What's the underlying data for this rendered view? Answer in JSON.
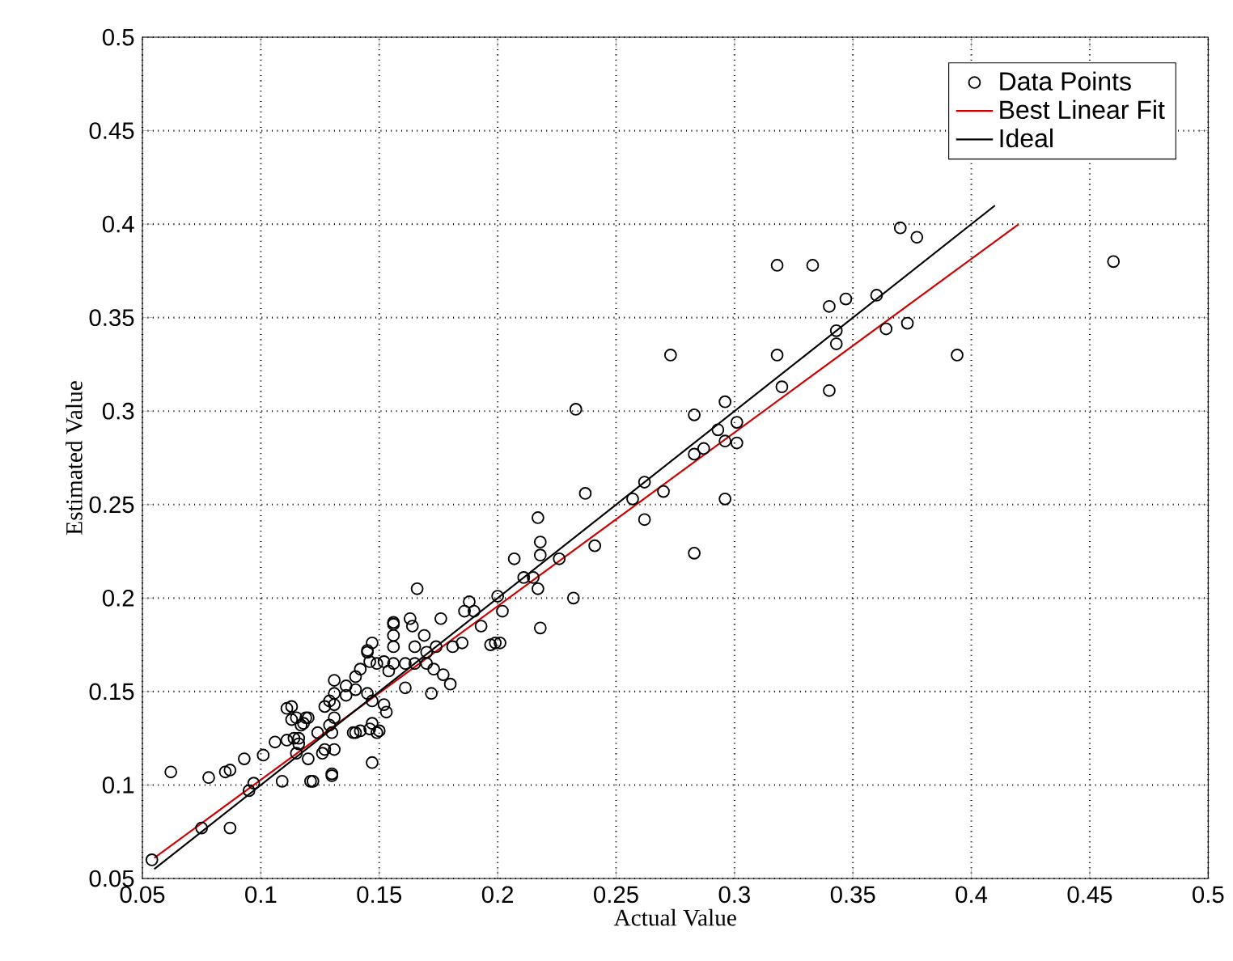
{
  "chart_data": {
    "type": "scatter",
    "xlabel": "Actual Value",
    "ylabel": "Estimated Value",
    "xlim": [
      0.05,
      0.5
    ],
    "ylim": [
      0.05,
      0.5
    ],
    "xticks": [
      0.05,
      0.1,
      0.15,
      0.2,
      0.25,
      0.3,
      0.35,
      0.4,
      0.45,
      0.5
    ],
    "yticks": [
      0.05,
      0.1,
      0.15,
      0.2,
      0.25,
      0.3,
      0.35,
      0.4,
      0.45,
      0.5
    ],
    "grid": true,
    "legend": "top right",
    "series": [
      {
        "name": "Data Points",
        "color": "#000000",
        "marker": "circle",
        "x": [
          0.37,
          0.377,
          0.333,
          0.318,
          0.46,
          0.34,
          0.347,
          0.36,
          0.343,
          0.343,
          0.364,
          0.373,
          0.318,
          0.394,
          0.32,
          0.34,
          0.273,
          0.233,
          0.283,
          0.296,
          0.301,
          0.293,
          0.296,
          0.301,
          0.287,
          0.283,
          0.262,
          0.257,
          0.27,
          0.237,
          0.296,
          0.262,
          0.283,
          0.241,
          0.226,
          0.232,
          0.218,
          0.217,
          0.218,
          0.218,
          0.215,
          0.217,
          0.207,
          0.211,
          0.166,
          0.2,
          0.188,
          0.186,
          0.19,
          0.176,
          0.202,
          0.193,
          0.199,
          0.201,
          0.197,
          0.163,
          0.156,
          0.164,
          0.156,
          0.156,
          0.169,
          0.165,
          0.17,
          0.174,
          0.181,
          0.185,
          0.147,
          0.145,
          0.149,
          0.152,
          0.156,
          0.161,
          0.165,
          0.17,
          0.173,
          0.177,
          0.18,
          0.172,
          0.161,
          0.154,
          0.142,
          0.14,
          0.136,
          0.131,
          0.129,
          0.127,
          0.131,
          0.136,
          0.14,
          0.145,
          0.147,
          0.152,
          0.153,
          0.147,
          0.142,
          0.14,
          0.149,
          0.131,
          0.129,
          0.13,
          0.124,
          0.118,
          0.12,
          0.115,
          0.113,
          0.114,
          0.116,
          0.127,
          0.131,
          0.147,
          0.122,
          0.13,
          0.054,
          0.062,
          0.075,
          0.078,
          0.085,
          0.087,
          0.087,
          0.093,
          0.095,
          0.097,
          0.101,
          0.106,
          0.109,
          0.111,
          0.111,
          0.113,
          0.117,
          0.119,
          0.116,
          0.115,
          0.12,
          0.121,
          0.126,
          0.13,
          0.131,
          0.139,
          0.146,
          0.15,
          0.145,
          0.146,
          0.156
        ],
        "values": [
          0.398,
          0.393,
          0.378,
          0.378,
          0.38,
          0.356,
          0.36,
          0.362,
          0.343,
          0.336,
          0.344,
          0.347,
          0.33,
          0.33,
          0.313,
          0.311,
          0.33,
          0.301,
          0.298,
          0.305,
          0.294,
          0.29,
          0.284,
          0.283,
          0.28,
          0.277,
          0.262,
          0.253,
          0.257,
          0.256,
          0.253,
          0.242,
          0.224,
          0.228,
          0.221,
          0.2,
          0.184,
          0.243,
          0.23,
          0.223,
          0.211,
          0.205,
          0.221,
          0.211,
          0.205,
          0.201,
          0.198,
          0.193,
          0.193,
          0.189,
          0.193,
          0.185,
          0.176,
          0.176,
          0.175,
          0.189,
          0.187,
          0.185,
          0.18,
          0.174,
          0.18,
          0.174,
          0.171,
          0.174,
          0.174,
          0.176,
          0.176,
          0.171,
          0.165,
          0.166,
          0.165,
          0.165,
          0.165,
          0.165,
          0.162,
          0.159,
          0.154,
          0.149,
          0.152,
          0.161,
          0.162,
          0.158,
          0.153,
          0.149,
          0.145,
          0.142,
          0.143,
          0.148,
          0.151,
          0.149,
          0.145,
          0.143,
          0.139,
          0.133,
          0.129,
          0.128,
          0.128,
          0.136,
          0.132,
          0.128,
          0.128,
          0.133,
          0.136,
          0.136,
          0.142,
          0.125,
          0.122,
          0.119,
          0.119,
          0.112,
          0.102,
          0.105,
          0.06,
          0.107,
          0.077,
          0.104,
          0.107,
          0.108,
          0.077,
          0.114,
          0.097,
          0.101,
          0.116,
          0.123,
          0.102,
          0.124,
          0.141,
          0.135,
          0.132,
          0.136,
          0.125,
          0.117,
          0.114,
          0.102,
          0.117,
          0.106,
          0.156,
          0.128,
          0.13,
          0.129,
          0.172,
          0.166,
          0.186
        ]
      },
      {
        "name": "Best Linear Fit",
        "type": "line",
        "color": "#d00000",
        "x": [
          0.055,
          0.42
        ],
        "values": [
          0.061,
          0.4
        ]
      },
      {
        "name": "Ideal",
        "type": "line",
        "color": "#000000",
        "x": [
          0.055,
          0.41
        ],
        "values": [
          0.055,
          0.41
        ]
      }
    ]
  }
}
